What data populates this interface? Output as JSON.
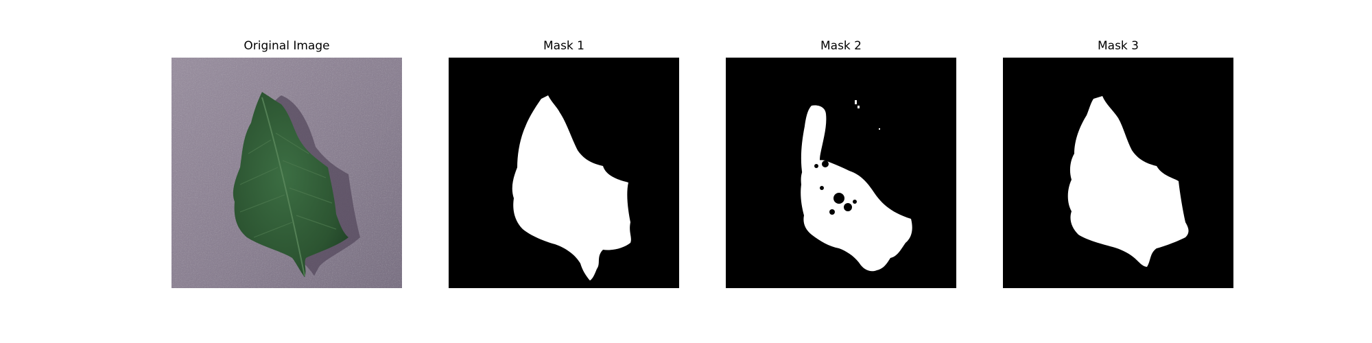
{
  "figure": {
    "panels": [
      {
        "title": "Original Image",
        "kind": "photo"
      },
      {
        "title": "Mask 1",
        "kind": "mask"
      },
      {
        "title": "Mask 2",
        "kind": "mask"
      },
      {
        "title": "Mask 3",
        "kind": "mask"
      }
    ]
  },
  "colors": {
    "background": "#ffffff",
    "photo_background": "#8c8293",
    "leaf": "#2f5a35",
    "leaf_shadow": "#4f4756",
    "mask_background": "#000000",
    "mask_foreground": "#ffffff"
  }
}
